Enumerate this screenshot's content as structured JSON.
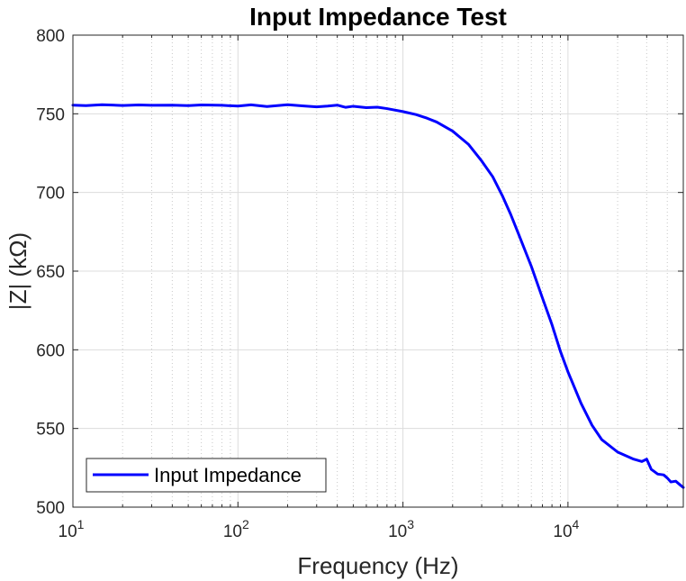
{
  "chart_data": {
    "type": "line",
    "title": "Input Impedance Test",
    "xlabel": "Frequency (Hz)",
    "ylabel": "|Z| (kΩ)",
    "x_scale": "log",
    "xlim": [
      10,
      50000
    ],
    "ylim": [
      500,
      800
    ],
    "x_ticks": [
      {
        "value": 10,
        "base": "10",
        "exp": "1"
      },
      {
        "value": 100,
        "base": "10",
        "exp": "2"
      },
      {
        "value": 1000,
        "base": "10",
        "exp": "3"
      },
      {
        "value": 10000,
        "base": "10",
        "exp": "4"
      }
    ],
    "y_ticks": [
      500,
      550,
      600,
      650,
      700,
      750,
      800
    ],
    "grid": true,
    "legend": {
      "location": "bottom-left",
      "entries": [
        "Input Impedance"
      ]
    },
    "series": [
      {
        "name": "Input Impedance",
        "color": "#0000ff",
        "x": [
          10,
          12,
          15,
          20,
          25,
          30,
          40,
          50,
          60,
          80,
          100,
          120,
          150,
          200,
          250,
          300,
          350,
          400,
          450,
          500,
          600,
          700,
          800,
          1000,
          1200,
          1400,
          1600,
          2000,
          2500,
          3000,
          3500,
          4000,
          4500,
          5000,
          6000,
          7000,
          8000,
          9000,
          10000,
          12000,
          14000,
          16000,
          20000,
          25000,
          28000,
          30000,
          32000,
          35000,
          38000,
          40000,
          42000,
          45000,
          48000,
          50000
        ],
        "values": [
          755.5,
          755.2,
          755.8,
          755.3,
          755.6,
          755.4,
          755.5,
          755.2,
          755.6,
          755.4,
          754.9,
          755.7,
          754.6,
          755.8,
          755.0,
          754.4,
          754.9,
          755.5,
          754.1,
          754.8,
          753.9,
          754.2,
          753.3,
          751.4,
          749.5,
          747.2,
          744.8,
          739.0,
          730.5,
          720.0,
          710.0,
          698.0,
          686.0,
          674.0,
          653.0,
          633.0,
          616.0,
          599.0,
          586.0,
          566.0,
          552.0,
          543.0,
          535.0,
          530.5,
          529.0,
          530.5,
          524.0,
          521.0,
          520.5,
          518.5,
          516.0,
          516.5,
          514.0,
          512.5
        ]
      }
    ]
  }
}
